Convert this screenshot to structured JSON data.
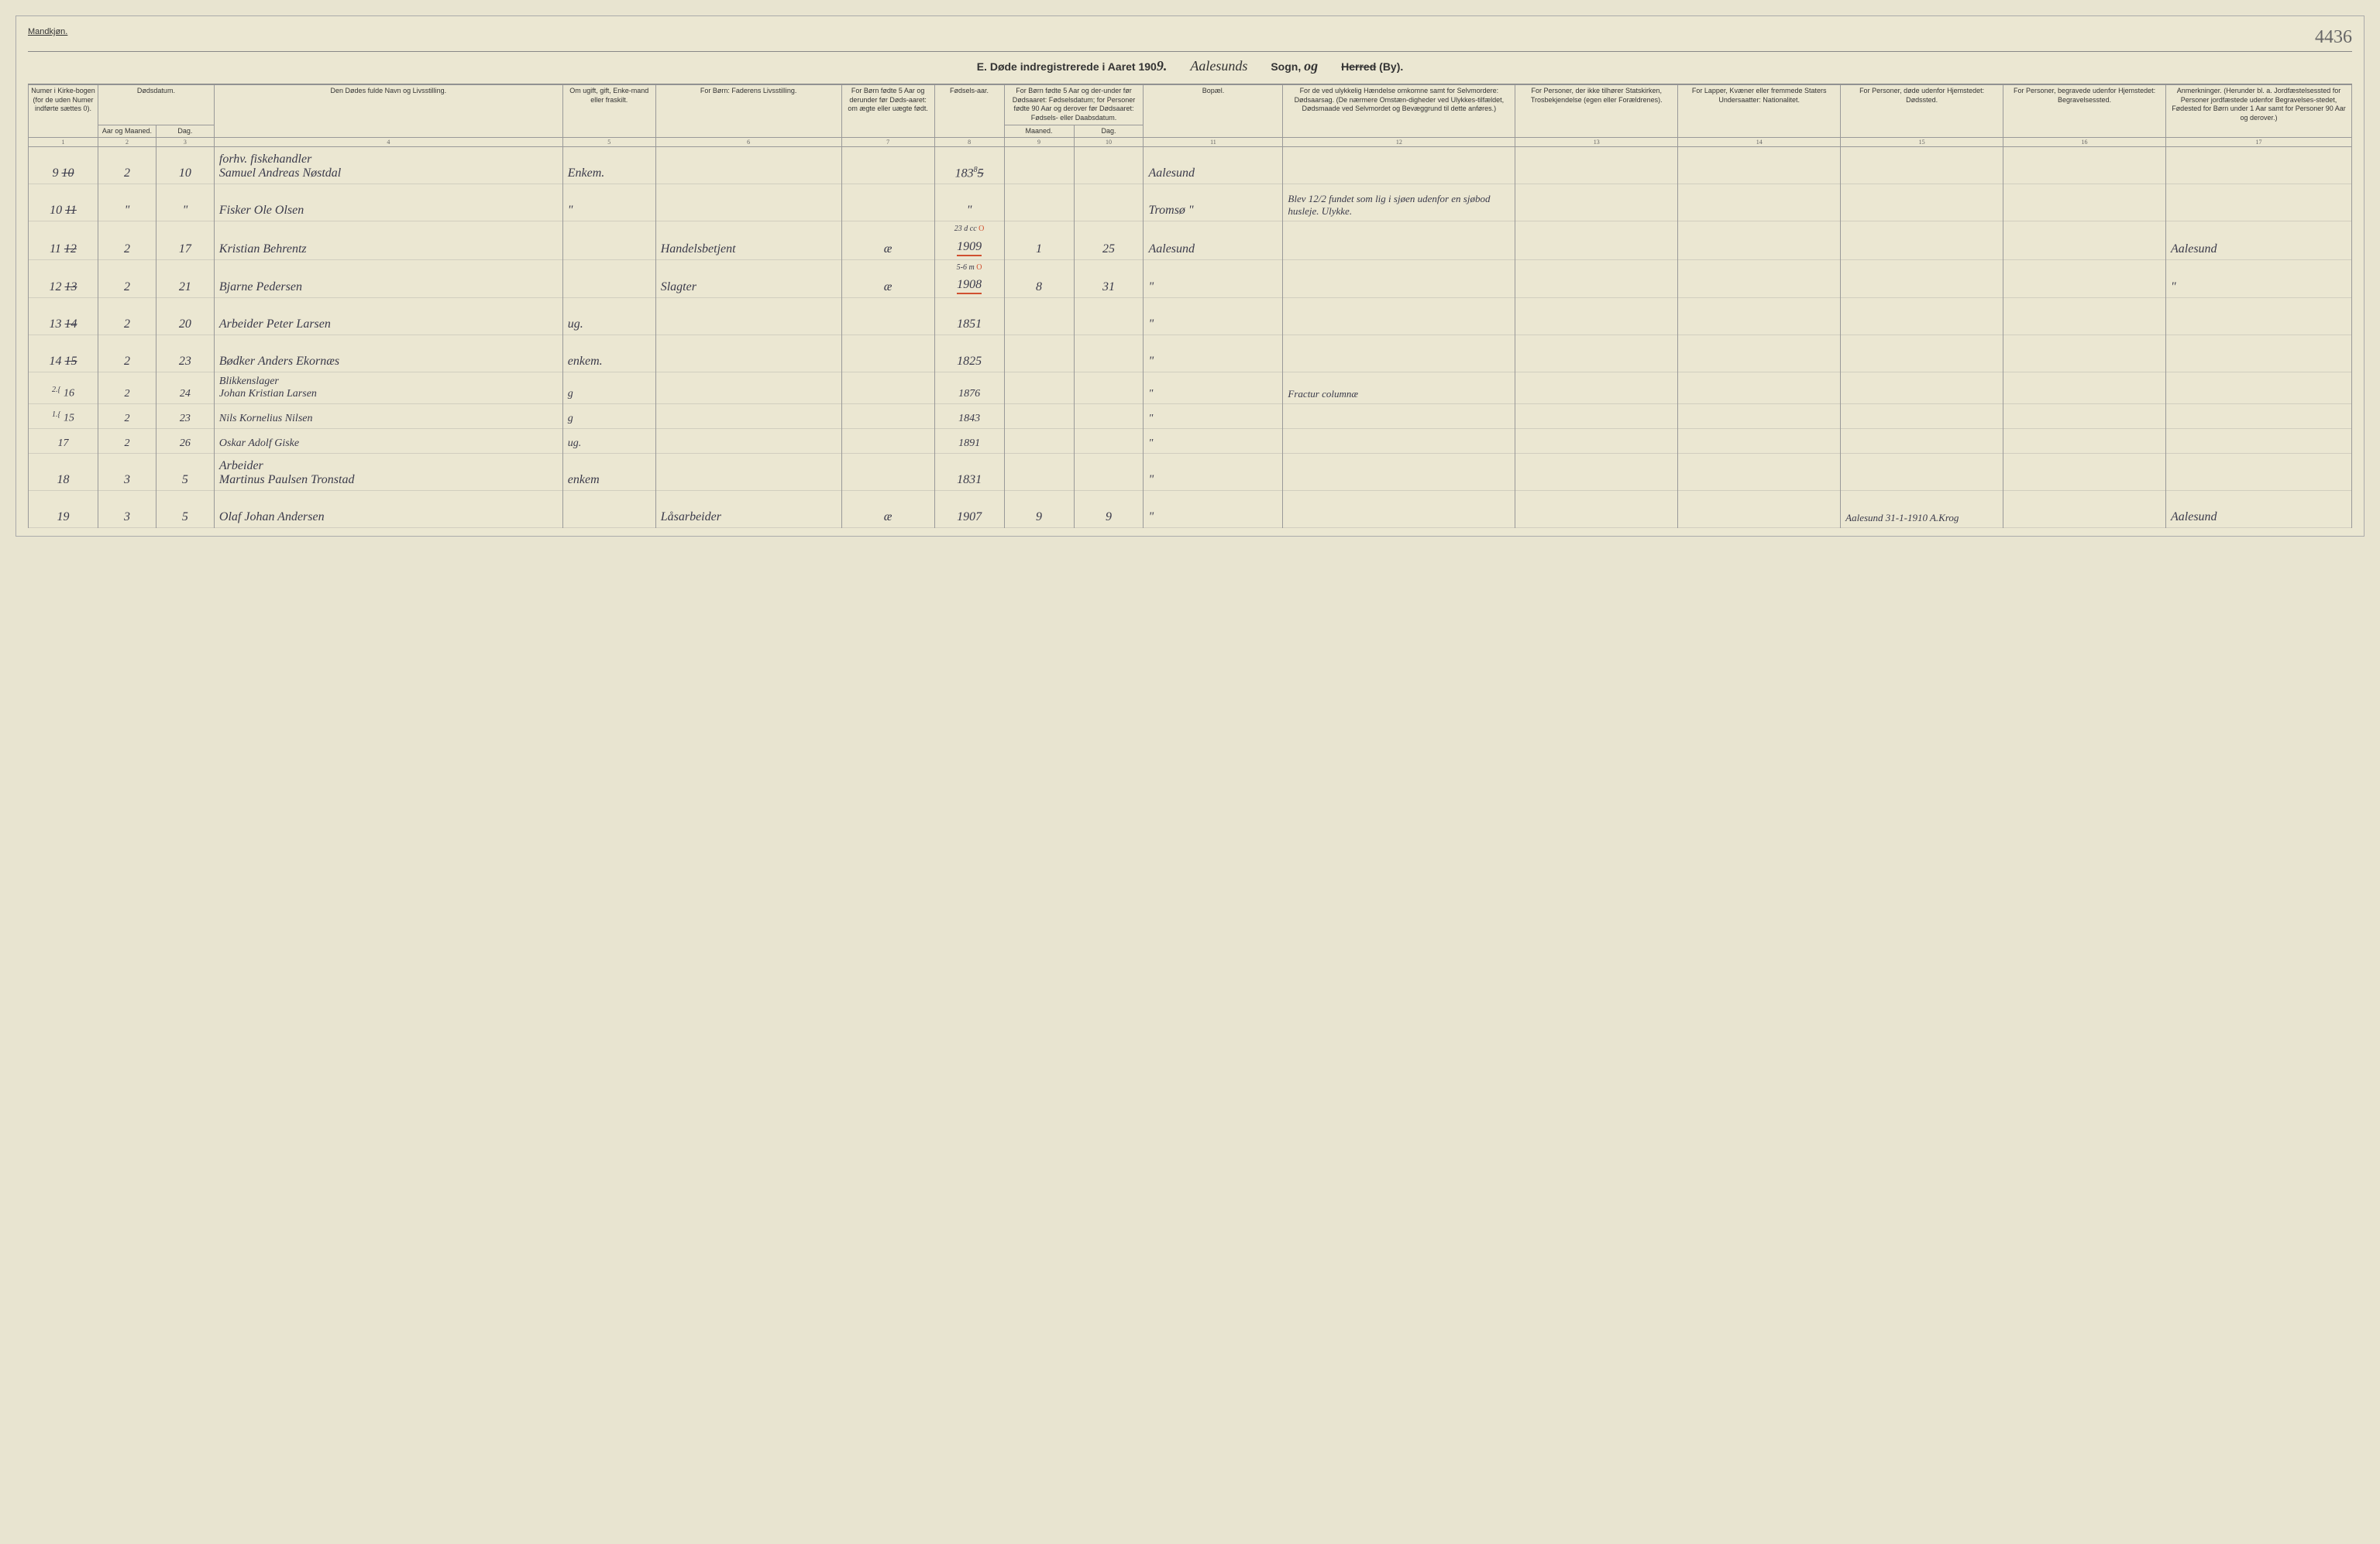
{
  "top": {
    "left_label": "Mandkjøn.",
    "right_note": "4436"
  },
  "title": {
    "prefix": "E.  Døde indregistrerede i Aaret 190",
    "year_suffix": "9.",
    "parish": "Aalesunds",
    "sogn_label": "Sogn,",
    "sogn_cursive": "og",
    "herred_strike": "Herred",
    "by_label": "(By)."
  },
  "headers": {
    "c1": "Numer i Kirke-bogen (for de uden Numer indførte sættes 0).",
    "c2a": "Dødsdatum.",
    "c2b": "Aar og Maaned.",
    "c2c": "Dag.",
    "c4": "Den Dødes fulde Navn og Livsstilling.",
    "c5": "Om ugift, gift, Enke-mand eller fraskilt.",
    "c6": "For Børn: Faderens Livsstilling.",
    "c7": "For Børn fødte 5 Aar og derunder før Døds-aaret: om ægte eller uægte født.",
    "c8": "Fødsels-aar.",
    "c9a": "For Børn fødte 5 Aar og der-under før Dødsaaret: Fødselsdatum; for Personer fødte 90 Aar og derover før Dødsaaret: Fødsels- eller Daabsdatum.",
    "c9b": "Maaned.",
    "c9c": "Dag.",
    "c11": "Bopæl.",
    "c12": "For de ved ulykkelig Hændelse omkomne samt for Selvmordere: Dødsaarsag. (De nærmere Omstæn-digheder ved Ulykkes-tilfældet, Dødsmaade ved Selvmordet og Bevæggrund til dette anføres.)",
    "c13": "For Personer, der ikke tilhører Statskirken, Trosbekjendelse (egen eller Forældrenes).",
    "c14": "For Lapper, Kvæner eller fremmede Staters Undersaatter: Nationalitet.",
    "c15": "For Personer, døde udenfor Hjemstedet: Dødssted.",
    "c16": "For Personer, begravede udenfor Hjemstedet: Begravelsessted.",
    "c17": "Anmerkninger. (Herunder bl. a. Jordfæstelsessted for Personer jordfæstede udenfor Begravelses-stedet, Fødested for Børn under 1 Aar samt for Personer 90 Aar og derover.)"
  },
  "colnums": [
    "1",
    "2",
    "3",
    "4",
    "5",
    "6",
    "7",
    "8",
    "9",
    "10",
    "11",
    "12",
    "13",
    "14",
    "15",
    "16",
    "17"
  ],
  "rows": [
    {
      "n": "9",
      "n_strike": "10",
      "mnd": "2",
      "dag": "10",
      "navn": "forhv. fiskehandler\nSamuel Andreas Nøstdal",
      "stand": "Enkem.",
      "far": "",
      "egte": "",
      "aar": "183",
      "aar_sup": "8",
      "aar_base": "5",
      "fmnd": "",
      "fdag": "",
      "bopel": "Aalesund",
      "c12": "",
      "c13": "",
      "c14": "",
      "c15": "",
      "c16": "",
      "c17": ""
    },
    {
      "n": "10",
      "n_strike": "11",
      "mnd": "\"",
      "dag": "\"",
      "navn": "Fisker Ole Olsen",
      "stand": "\"",
      "far": "",
      "egte": "",
      "aar": "\"",
      "fmnd": "",
      "fdag": "",
      "bopel": "Tromsø \"",
      "c12": "Blev 12/2 fundet som lig i sjøen udenfor en sjøbod husleje. Ulykke.",
      "c13": "",
      "c14": "",
      "c15": "",
      "c16": "",
      "c17": ""
    },
    {
      "n": "11",
      "n_strike": "12",
      "mnd": "2",
      "dag": "17",
      "navn": "Kristian Behrentz",
      "stand": "",
      "far": "Handelsbetjent",
      "egte": "æ",
      "aar": "1909",
      "aar_red": true,
      "red_sup": "23 d cc",
      "fmnd": "1",
      "fdag": "25",
      "bopel": "Aalesund",
      "c12": "",
      "c13": "",
      "c14": "",
      "c15": "",
      "c16": "",
      "c17": "Aalesund"
    },
    {
      "n": "12",
      "n_strike": "13",
      "mnd": "2",
      "dag": "21",
      "navn": "Bjarne Pedersen",
      "stand": "",
      "far": "Slagter",
      "egte": "æ",
      "aar": "1908",
      "aar_red": true,
      "red_sup": "5-6 m",
      "fmnd": "8",
      "fdag": "31",
      "bopel": "\"",
      "c12": "",
      "c13": "",
      "c14": "",
      "c15": "",
      "c16": "",
      "c17": "\""
    },
    {
      "n": "13",
      "n_strike": "14",
      "mnd": "2",
      "dag": "20",
      "navn": "Arbeider Peter Larsen",
      "stand": "ug.",
      "far": "",
      "egte": "",
      "aar": "1851",
      "fmnd": "",
      "fdag": "",
      "bopel": "\"",
      "c12": "",
      "c13": "",
      "c14": "",
      "c15": "",
      "c16": "",
      "c17": ""
    },
    {
      "n": "14",
      "n_strike": "15",
      "mnd": "2",
      "dag": "23",
      "navn": "Bødker Anders Ekornæs",
      "stand": "enkem.",
      "far": "",
      "egte": "",
      "aar": "1825",
      "fmnd": "",
      "fdag": "",
      "bopel": "\"",
      "c12": "",
      "c13": "",
      "c14": "",
      "c15": "",
      "c16": "",
      "c17": ""
    },
    {
      "n": "16",
      "pre": "2.{",
      "mnd": "2",
      "dag": "24",
      "navn": "Blikkenslager\nJohan Kristian Larsen",
      "stand": "g",
      "far": "",
      "egte": "",
      "aar": "1876",
      "fmnd": "",
      "fdag": "",
      "bopel": "\"",
      "c12": "Fractur columnæ",
      "c13": "",
      "c14": "",
      "c15": "",
      "c16": "",
      "c17": "",
      "tight": true
    },
    {
      "n": "15",
      "pre": "1.{",
      "mnd": "2",
      "dag": "23",
      "navn": "Nils Kornelius Nilsen",
      "stand": "g",
      "far": "",
      "egte": "",
      "aar": "1843",
      "fmnd": "",
      "fdag": "",
      "bopel": "\"",
      "c12": "",
      "c13": "",
      "c14": "",
      "c15": "",
      "c16": "",
      "c17": "",
      "tight": true
    },
    {
      "n": "17",
      "mnd": "2",
      "dag": "26",
      "navn": "Oskar Adolf Giske",
      "stand": "ug.",
      "far": "",
      "egte": "",
      "aar": "1891",
      "fmnd": "",
      "fdag": "",
      "bopel": "\"",
      "c12": "",
      "c13": "",
      "c14": "",
      "c15": "",
      "c16": "",
      "c17": "",
      "tight": true
    },
    {
      "n": "18",
      "mnd": "3",
      "dag": "5",
      "navn": "Arbeider\nMartinus Paulsen Tronstad",
      "stand": "enkem",
      "far": "",
      "egte": "",
      "aar": "1831",
      "fmnd": "",
      "fdag": "",
      "bopel": "\"",
      "c12": "",
      "c13": "",
      "c14": "",
      "c15": "",
      "c16": "",
      "c17": ""
    },
    {
      "n": "19",
      "mnd": "3",
      "dag": "5",
      "navn": "Olaf Johan Andersen",
      "stand": "",
      "far": "Låsarbeider",
      "egte": "æ",
      "aar": "1907",
      "fmnd": "9",
      "fdag": "9",
      "bopel": "\"",
      "c12": "",
      "c13": "",
      "c14": "",
      "c15": "Aalesund 31-1-1910  A.Krog",
      "c16": "",
      "c17": "Aalesund"
    }
  ]
}
